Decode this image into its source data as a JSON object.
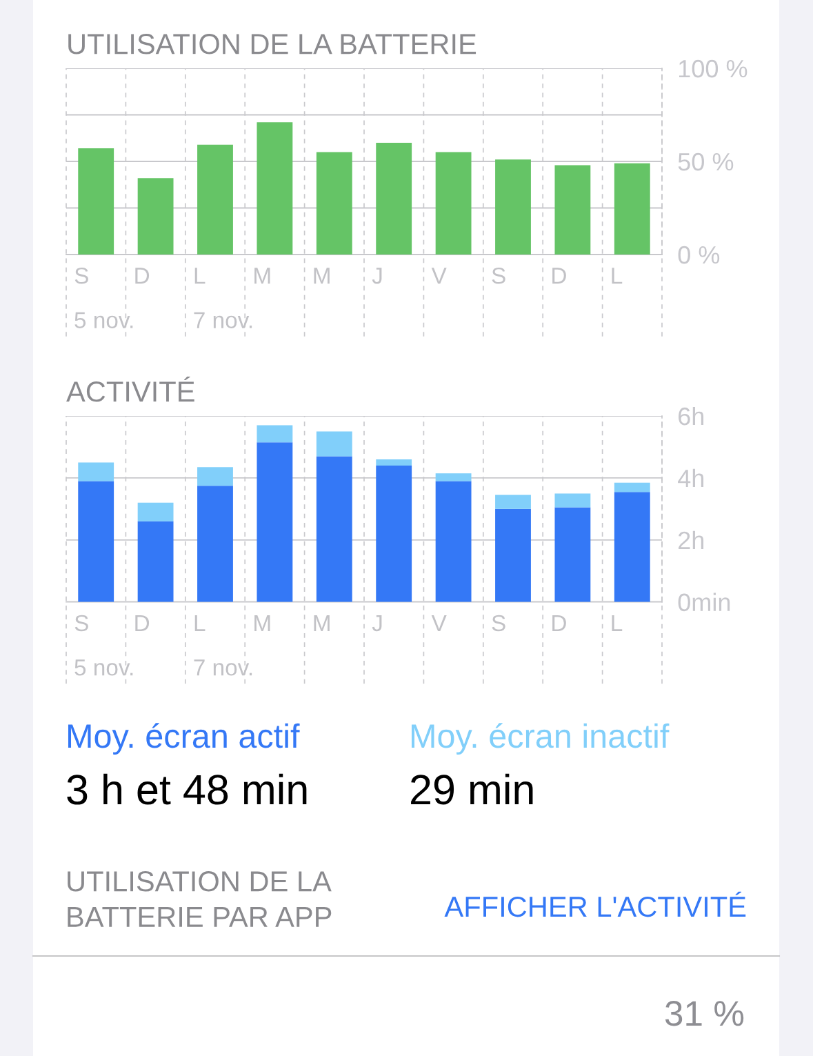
{
  "chart_data": [
    {
      "type": "bar",
      "title": "UTILISATION DE LA BATTERIE",
      "categories": [
        "S",
        "D",
        "L",
        "M",
        "M",
        "J",
        "V",
        "S",
        "D",
        "L"
      ],
      "values": [
        57,
        41,
        59,
        71,
        55,
        60,
        55,
        51,
        48,
        49
      ],
      "color": "#65c466",
      "ylim": [
        0,
        100
      ],
      "yticks": [
        {
          "value": 0,
          "label": "0 %"
        },
        {
          "value": 25,
          "label": null
        },
        {
          "value": 50,
          "label": "50 %"
        },
        {
          "value": 75,
          "label": null
        },
        {
          "value": 100,
          "label": "100 %"
        }
      ],
      "grid": true,
      "annotations": [
        "5 nov.",
        "7 nov."
      ]
    },
    {
      "type": "bar",
      "title": "ACTIVITÉ",
      "categories": [
        "S",
        "D",
        "L",
        "M",
        "M",
        "J",
        "V",
        "S",
        "D",
        "L"
      ],
      "stacked": true,
      "series": [
        {
          "color": "#3478f6",
          "values": [
            3.9,
            2.6,
            3.75,
            5.15,
            4.7,
            4.4,
            3.9,
            3.0,
            3.05,
            3.55
          ]
        },
        {
          "color": "#81cffa",
          "values": [
            0.6,
            0.6,
            0.6,
            0.55,
            0.8,
            0.2,
            0.25,
            0.45,
            0.45,
            0.3
          ]
        }
      ],
      "ylim": [
        0,
        6
      ],
      "yticks": [
        {
          "value": 0,
          "label": "0min"
        },
        {
          "value": 2,
          "label": "2h"
        },
        {
          "value": 4,
          "label": "4h"
        },
        {
          "value": 6,
          "label": "6h"
        }
      ],
      "grid": true,
      "annotations": [
        "5 nov.",
        "7 nov.",
        "Moy. écran actif",
        "3 h et 48 min",
        "Moy. écran inactif",
        "29 min"
      ]
    },
    {
      "type": "other",
      "title": "UTILISATION DE LA\nBATTERIE PAR APP",
      "annotations": [
        "AFFICHER L'ACTIVITÉ",
        "31 %"
      ]
    }
  ]
}
